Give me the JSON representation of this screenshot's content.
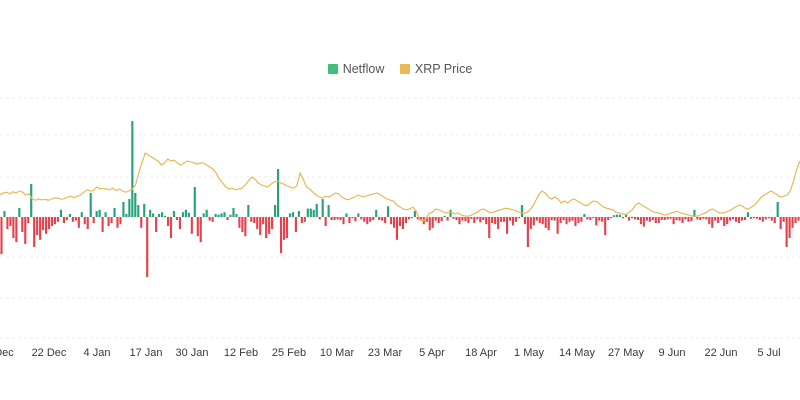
{
  "chart_data": {
    "type": "bar",
    "title": "",
    "xlabel": "",
    "ylabel": "",
    "legend": {
      "placement": "top-center",
      "entries": [
        {
          "name": "Netflow",
          "color": "#26a17b"
        },
        {
          "name": "XRP Price",
          "color": "#e8b955"
        }
      ]
    },
    "colors": {
      "positive": "#26a17b",
      "negative": "#e4414c",
      "price": "#e8b955",
      "grid": "#ececec",
      "zero_line": "#e2e2e2"
    },
    "grid": true,
    "x_ticks": [
      "Dec",
      "22 Dec",
      "4 Jan",
      "17 Jan",
      "30 Jan",
      "12 Feb",
      "25 Feb",
      "10 Mar",
      "23 Mar",
      "5 Apr",
      "18 Apr",
      "1 May",
      "14 May",
      "27 May",
      "9 Jun",
      "22 Jun",
      "5 Jul"
    ],
    "series": [
      {
        "name": "Netflow",
        "type": "bar",
        "values": [
          -0.62,
          0.1,
          -0.2,
          -0.15,
          -0.35,
          -0.42,
          0.15,
          -0.25,
          -0.45,
          -0.1,
          0.55,
          -0.5,
          -0.3,
          -0.38,
          -0.22,
          -0.28,
          -0.2,
          -0.15,
          -0.12,
          -0.08,
          0.12,
          -0.1,
          -0.05,
          0.05,
          -0.08,
          -0.06,
          -0.18,
          0.08,
          -0.12,
          -0.2,
          0.4,
          -0.1,
          0.1,
          0.12,
          -0.25,
          0.08,
          -0.15,
          -0.1,
          0.15,
          -0.18,
          -0.12,
          0.25,
          0.05,
          0.3,
          1.6,
          0.4,
          0.2,
          -0.18,
          0.22,
          -1.0,
          0.12,
          0.06,
          -0.25,
          0.05,
          0.08,
          0.02,
          -0.15,
          -0.35,
          0.1,
          -0.05,
          -0.2,
          0.08,
          0.12,
          0.07,
          -0.28,
          0.5,
          -0.32,
          -0.42,
          0.06,
          0.12,
          -0.06,
          -0.08,
          0.05,
          0.04,
          0.06,
          0.08,
          -0.05,
          0.04,
          0.15,
          0.05,
          -0.18,
          -0.25,
          -0.32,
          0.2,
          -0.08,
          -0.1,
          -0.2,
          -0.3,
          -0.12,
          -0.35,
          -0.28,
          -0.2,
          0.2,
          0.8,
          -0.6,
          -0.38,
          -0.35,
          0.06,
          0.08,
          -0.25,
          0.1,
          -0.1,
          -0.08,
          0.14,
          0.14,
          0.12,
          0.22,
          -0.04,
          0.3,
          -0.15,
          0.2,
          -0.05,
          -0.05,
          -0.04,
          -0.05,
          -0.12,
          0.06,
          -0.1,
          -0.02,
          -0.07,
          0.06,
          -0.04,
          -0.08,
          -0.12,
          -0.08,
          -0.05,
          0.12,
          -0.05,
          -0.06,
          -0.1,
          0.18,
          -0.12,
          -0.18,
          -0.38,
          -0.15,
          -0.2,
          -0.1,
          -0.04,
          -0.02,
          0.1,
          -0.04,
          -0.06,
          -0.12,
          -0.08,
          -0.22,
          -0.18,
          -0.06,
          -0.1,
          -0.07,
          0.02,
          -0.06,
          0.12,
          -0.03,
          -0.05,
          -0.12,
          -0.06,
          -0.07,
          -0.1,
          -0.03,
          -0.1,
          -0.04,
          -0.09,
          -0.05,
          -0.12,
          -0.35,
          -0.1,
          -0.12,
          -0.2,
          -0.08,
          -0.08,
          -0.28,
          -0.06,
          -0.14,
          -0.08,
          -0.02,
          0.2,
          -0.12,
          -0.5,
          -0.2,
          -0.14,
          -0.06,
          -0.1,
          -0.12,
          -0.18,
          -0.22,
          -0.05,
          -0.06,
          -0.28,
          -0.1,
          -0.05,
          -0.12,
          -0.08,
          -0.06,
          -0.15,
          -0.1,
          -0.08,
          0.05,
          -0.04,
          -0.05,
          -0.02,
          -0.14,
          -0.06,
          -0.08,
          -0.3,
          -0.05,
          -0.02,
          0.03,
          0.04,
          0.04,
          -0.02,
          0.04,
          -0.06,
          -0.02,
          -0.04,
          -0.05,
          -0.12,
          -0.16,
          -0.06,
          -0.08,
          -0.05,
          -0.1,
          -0.1,
          -0.05,
          -0.05,
          -0.04,
          -0.03,
          -0.12,
          -0.05,
          -0.06,
          -0.1,
          -0.04,
          -0.08,
          -0.07,
          0.12,
          -0.04,
          -0.05,
          -0.03,
          -0.04,
          -0.12,
          -0.18,
          -0.06,
          -0.1,
          -0.05,
          -0.15,
          -0.12,
          -0.06,
          -0.04,
          -0.08,
          -0.1,
          -0.06,
          -0.05,
          0.08,
          -0.03,
          -0.02,
          -0.03,
          -0.05,
          -0.08,
          -0.04,
          -0.02,
          -0.06,
          -0.1,
          0.25,
          -0.2,
          -0.08,
          -0.5,
          -0.35,
          -0.18,
          -0.1,
          -0.06
        ]
      },
      {
        "name": "XRP Price",
        "type": "line",
        "values": [
          0.55,
          0.6,
          0.62,
          0.58,
          0.63,
          0.6,
          0.65,
          0.62,
          0.55,
          0.58,
          0.45,
          0.42,
          0.45,
          0.43,
          0.44,
          0.42,
          0.45,
          0.48,
          0.47,
          0.44,
          0.46,
          0.5,
          0.52,
          0.48,
          0.52,
          0.55,
          0.62,
          0.68,
          0.65,
          0.66,
          0.75,
          0.7,
          0.72,
          0.7,
          0.68,
          0.72,
          0.66,
          0.7,
          0.65,
          0.62,
          0.65,
          0.7,
          0.8,
          1.1,
          1.35,
          1.6,
          1.55,
          1.5,
          1.45,
          1.4,
          1.3,
          1.35,
          1.45,
          1.4,
          1.42,
          1.35,
          1.3,
          1.35,
          1.4,
          1.38,
          1.36,
          1.32,
          1.35,
          1.35,
          1.3,
          1.25,
          1.2,
          1.1,
          0.95,
          0.85,
          0.75,
          0.7,
          0.72,
          0.68,
          0.7,
          0.72,
          0.8,
          0.9,
          1.0,
          0.95,
          0.85,
          0.8,
          0.78,
          0.75,
          0.82,
          0.88,
          0.9,
          0.85,
          0.82,
          0.78,
          0.75,
          0.72,
          0.78,
          1.1,
          0.95,
          0.75,
          0.7,
          0.62,
          0.55,
          0.5,
          0.48,
          0.52,
          0.5,
          0.55,
          0.6,
          0.58,
          0.5,
          0.45,
          0.43,
          0.47,
          0.5,
          0.55,
          0.52,
          0.5,
          0.54,
          0.56,
          0.58,
          0.6,
          0.55,
          0.5,
          0.45,
          0.42,
          0.4,
          0.3,
          0.25,
          0.2,
          0.18,
          0.2,
          0.25,
          0.15,
          -0.05,
          -0.1,
          -0.05,
          0.08,
          0.12,
          0.2,
          0.18,
          0.15,
          0.1,
          0.12,
          0.12,
          0.08,
          0.1,
          0.05,
          0.03,
          0.02,
          0.04,
          0.08,
          0.12,
          0.18,
          0.2,
          0.15,
          0.1,
          0.12,
          0.15,
          0.18,
          0.2,
          0.22,
          0.2,
          0.18,
          0.15,
          0.12,
          0.1,
          0.1,
          0.15,
          0.25,
          0.4,
          0.55,
          0.65,
          0.6,
          0.5,
          0.45,
          0.5,
          0.45,
          0.35,
          0.4,
          0.35,
          0.42,
          0.45,
          0.4,
          0.35,
          0.3,
          0.28,
          0.35,
          0.4,
          0.38,
          0.32,
          0.25,
          0.22,
          0.2,
          0.18,
          0.12,
          0.1,
          0.08,
          0.06,
          0.12,
          0.18,
          0.3,
          0.35,
          0.3,
          0.25,
          0.2,
          0.15,
          0.12,
          0.1,
          0.08,
          0.05,
          0.06,
          0.1,
          0.12,
          0.14,
          0.1,
          0.08,
          0.06,
          0.04,
          0.02,
          0.02,
          0.05,
          0.08,
          0.12,
          0.18,
          0.2,
          0.15,
          0.1,
          0.1,
          0.12,
          0.15,
          0.2,
          0.25,
          0.3,
          0.28,
          0.22,
          0.2,
          0.25,
          0.3,
          0.4,
          0.5,
          0.55,
          0.6,
          0.65,
          0.6,
          0.55,
          0.5,
          0.52,
          0.55,
          0.65,
          0.9,
          1.2,
          1.4
        ]
      }
    ]
  }
}
